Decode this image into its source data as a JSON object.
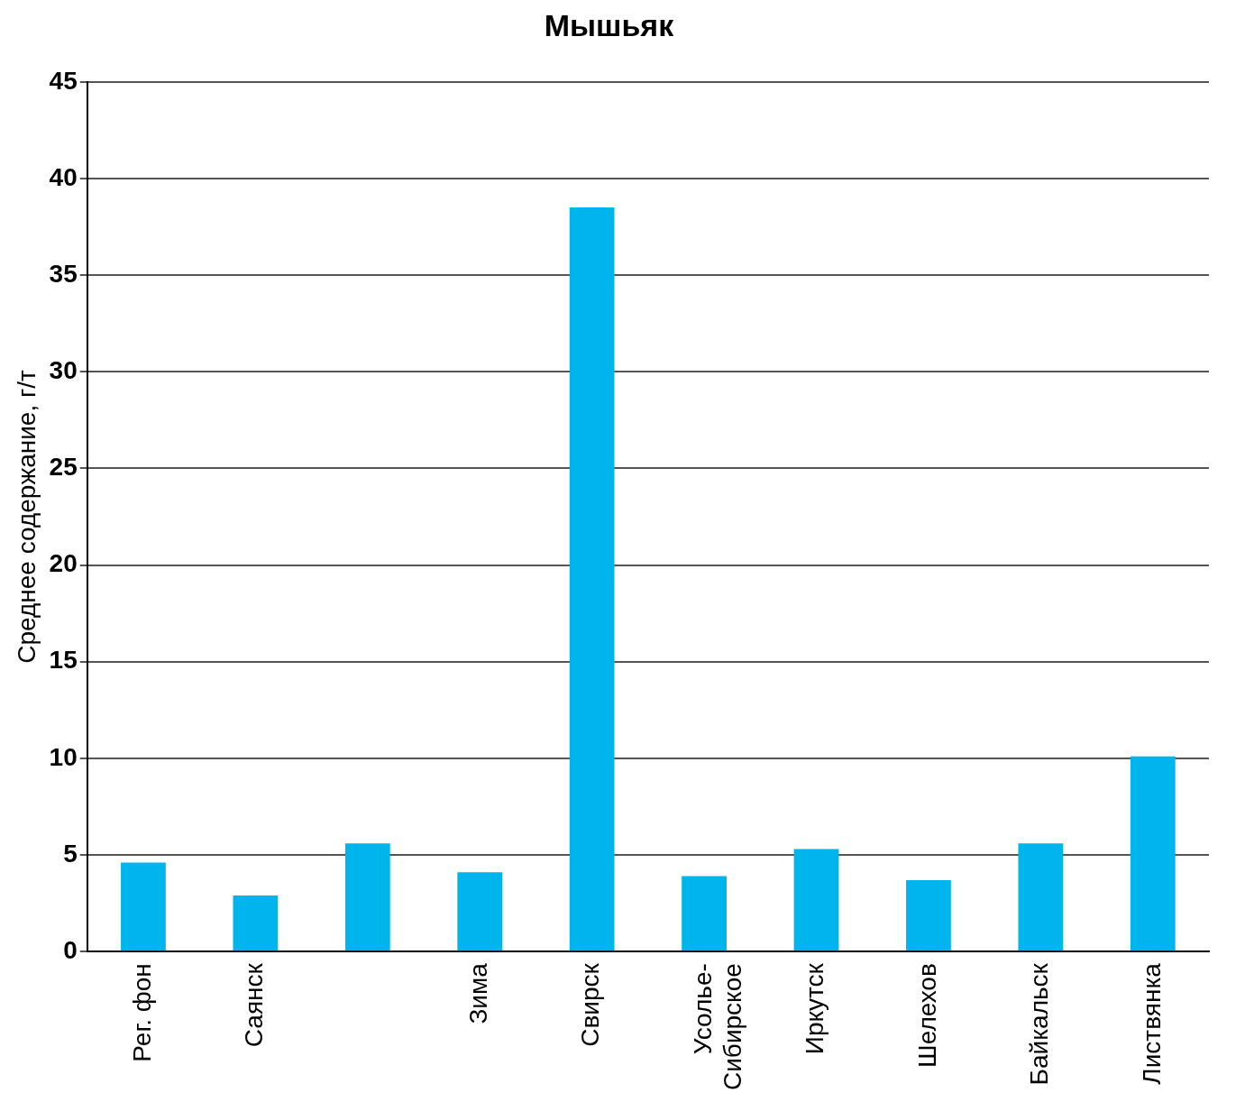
{
  "chart_data": {
    "type": "bar",
    "title": "Мышьяк",
    "ylabel": "Среднее содержание, г/т",
    "categories": [
      "Рег. фон",
      "Саянск",
      null,
      "Зима",
      "Свирск",
      "Усолье-Сибирское",
      "Иркутск",
      "Шелехов",
      "Байкальск",
      "Листвянка"
    ],
    "values": [
      4.6,
      2.9,
      5.6,
      4.1,
      38.5,
      3.9,
      5.3,
      3.7,
      5.6,
      10.1
    ],
    "color": "#00b4ec",
    "ylim": [
      0,
      45
    ],
    "yticks": [
      0,
      5,
      10,
      15,
      20,
      25,
      30,
      35,
      40,
      45
    ],
    "grid": "y",
    "legend": false
  }
}
